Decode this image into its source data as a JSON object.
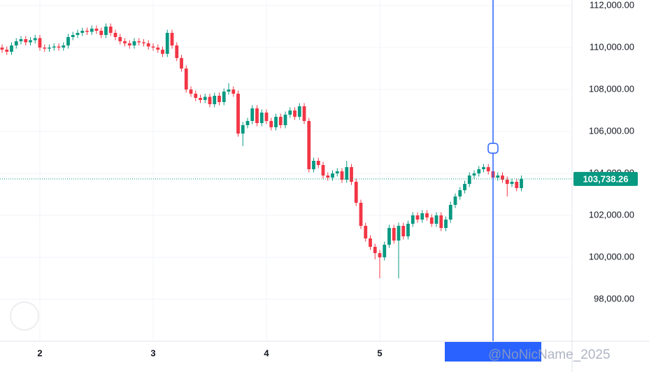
{
  "chart_data": {
    "type": "candlestick",
    "categories": [
      null,
      null,
      null,
      null,
      null,
      null,
      null,
      null,
      "2",
      null,
      null,
      null,
      null,
      null,
      null,
      null,
      null,
      null,
      null,
      null,
      null,
      null,
      null,
      null,
      null,
      null,
      null,
      null,
      null,
      null,
      null,
      null,
      "3",
      null,
      null,
      null,
      null,
      null,
      null,
      null,
      null,
      null,
      null,
      null,
      null,
      null,
      null,
      null,
      null,
      null,
      null,
      null,
      null,
      null,
      null,
      null,
      "4",
      null,
      null,
      null,
      null,
      null,
      null,
      null,
      null,
      null,
      null,
      null,
      null,
      null,
      null,
      null,
      null,
      null,
      null,
      null,
      null,
      null,
      null,
      null,
      "5",
      null,
      null,
      null,
      null,
      null,
      null,
      null,
      null,
      null,
      null,
      null,
      null,
      null,
      null,
      null,
      null,
      null,
      null,
      null,
      null,
      null,
      null,
      null,
      null,
      null,
      null,
      null,
      null,
      null,
      null
    ],
    "open": [
      110000,
      109900,
      109800,
      110100,
      110300,
      110400,
      110250,
      110350,
      110450,
      110000,
      109950,
      110000,
      110050,
      110000,
      110100,
      110500,
      110600,
      110700,
      110800,
      110750,
      110900,
      110800,
      110600,
      111000,
      110700,
      110500,
      110300,
      110200,
      110100,
      110300,
      110250,
      110200,
      110050,
      110000,
      109900,
      109700,
      110700,
      110100,
      109500,
      109000,
      108000,
      107800,
      107600,
      107500,
      107650,
      107300,
      107700,
      107400,
      107900,
      108000,
      107800,
      105900,
      106300,
      106500,
      107100,
      106400,
      106900,
      106500,
      106200,
      106700,
      106300,
      106800,
      107000,
      106700,
      107200,
      106500,
      104200,
      104600,
      104400,
      103900,
      103800,
      104000,
      104100,
      103700,
      104300,
      103600,
      102600,
      101500,
      100900,
      100500,
      100200,
      100000,
      100600,
      101400,
      100800,
      101500,
      101000,
      101600,
      102000,
      101800,
      102100,
      101900,
      101600,
      102000,
      101400,
      101800,
      102500,
      102900,
      103200,
      103500,
      103900,
      104000,
      104200,
      104300,
      104100,
      103800,
      103900,
      103700,
      103500,
      103600,
      103300
    ],
    "high": [
      110150,
      110050,
      110250,
      110450,
      110550,
      110550,
      110500,
      110600,
      110600,
      110150,
      110150,
      110200,
      110200,
      110250,
      110650,
      110750,
      110850,
      110950,
      110950,
      111050,
      111050,
      110950,
      111150,
      111150,
      110850,
      110650,
      110450,
      110350,
      110450,
      110450,
      110400,
      110350,
      110200,
      110150,
      110050,
      110850,
      110850,
      110250,
      109650,
      109150,
      108150,
      107950,
      107750,
      107800,
      107800,
      107850,
      107850,
      108050,
      108300,
      108150,
      107950,
      106450,
      106650,
      107250,
      107250,
      107050,
      107050,
      106650,
      106850,
      106850,
      106950,
      107150,
      107150,
      107350,
      107350,
      106650,
      104750,
      104750,
      104550,
      104050,
      104150,
      104250,
      104250,
      104600,
      104450,
      103750,
      102750,
      101650,
      101050,
      100650,
      100350,
      100750,
      101550,
      101550,
      101650,
      101650,
      101750,
      102150,
      102150,
      102250,
      102250,
      102050,
      102150,
      102150,
      101950,
      102650,
      103050,
      103350,
      103650,
      104050,
      104150,
      104350,
      104450,
      104450,
      104250,
      104050,
      104050,
      103850,
      103750,
      103750,
      103900
    ],
    "low": [
      109750,
      109650,
      109650,
      109950,
      110150,
      110100,
      110100,
      110200,
      109850,
      109800,
      109800,
      109850,
      109850,
      109850,
      109950,
      110350,
      110450,
      110550,
      110600,
      110600,
      110650,
      110450,
      110450,
      110550,
      110350,
      110150,
      110050,
      109950,
      109950,
      110100,
      110050,
      109900,
      109850,
      109750,
      109550,
      109550,
      109950,
      109350,
      108850,
      107850,
      107650,
      107450,
      107350,
      107350,
      107150,
      107150,
      107250,
      107250,
      107750,
      107650,
      105750,
      105300,
      106150,
      106350,
      106250,
      106250,
      106350,
      106050,
      106050,
      106150,
      106150,
      106650,
      106550,
      106550,
      106350,
      104050,
      104050,
      104250,
      103750,
      103650,
      103650,
      103850,
      103550,
      103550,
      103450,
      102450,
      101350,
      100750,
      100350,
      99900,
      99000,
      99850,
      100450,
      100650,
      99000,
      100850,
      100850,
      101450,
      101650,
      101650,
      101750,
      101450,
      101450,
      101250,
      101250,
      101650,
      102350,
      102750,
      103050,
      103350,
      103750,
      103850,
      104050,
      103950,
      103650,
      103650,
      103550,
      102900,
      103350,
      103150,
      103150
    ],
    "close": [
      109900,
      109800,
      110100,
      110300,
      110400,
      110250,
      110350,
      110450,
      110000,
      109950,
      110000,
      110050,
      110000,
      110100,
      110500,
      110600,
      110700,
      110800,
      110750,
      110900,
      110800,
      110600,
      111000,
      110700,
      110500,
      110300,
      110200,
      110100,
      110300,
      110250,
      110200,
      110050,
      110000,
      109900,
      109700,
      110700,
      110100,
      109500,
      109000,
      108000,
      107800,
      107600,
      107500,
      107650,
      107300,
      107700,
      107400,
      107900,
      108000,
      107800,
      105900,
      106300,
      106500,
      107100,
      106400,
      106900,
      106500,
      106200,
      106700,
      106300,
      106800,
      107000,
      106700,
      107200,
      106500,
      104200,
      104600,
      104400,
      103900,
      103800,
      104000,
      104100,
      103700,
      104300,
      103600,
      102600,
      101500,
      100900,
      100500,
      100200,
      100000,
      100600,
      101400,
      100800,
      101500,
      101000,
      101600,
      102000,
      101800,
      102100,
      101900,
      101600,
      102000,
      101400,
      101800,
      102500,
      102900,
      103200,
      103500,
      103900,
      104000,
      104200,
      104300,
      104100,
      103800,
      103900,
      103700,
      103500,
      103600,
      103300,
      103738.26
    ],
    "up_color": "#089981",
    "down_color": "#f23645",
    "ylim": [
      96000,
      112000
    ],
    "yticks": [
      {
        "value": 98000,
        "label": "98,000.00"
      },
      {
        "value": 100000,
        "label": "100,000.00"
      },
      {
        "value": 102000,
        "label": "102,000.00"
      },
      {
        "value": 104000,
        "label": "104,000.00"
      },
      {
        "value": 106000,
        "label": "106,000.00"
      },
      {
        "value": 108000,
        "label": "108,000.00"
      },
      {
        "value": 110000,
        "label": "110,000.00"
      },
      {
        "value": 112000,
        "label": "112,000.00"
      }
    ],
    "grid": true,
    "last_price": {
      "value": 103738.26,
      "label": "103,738.26"
    },
    "watermark": "@NoNicName_2025"
  }
}
